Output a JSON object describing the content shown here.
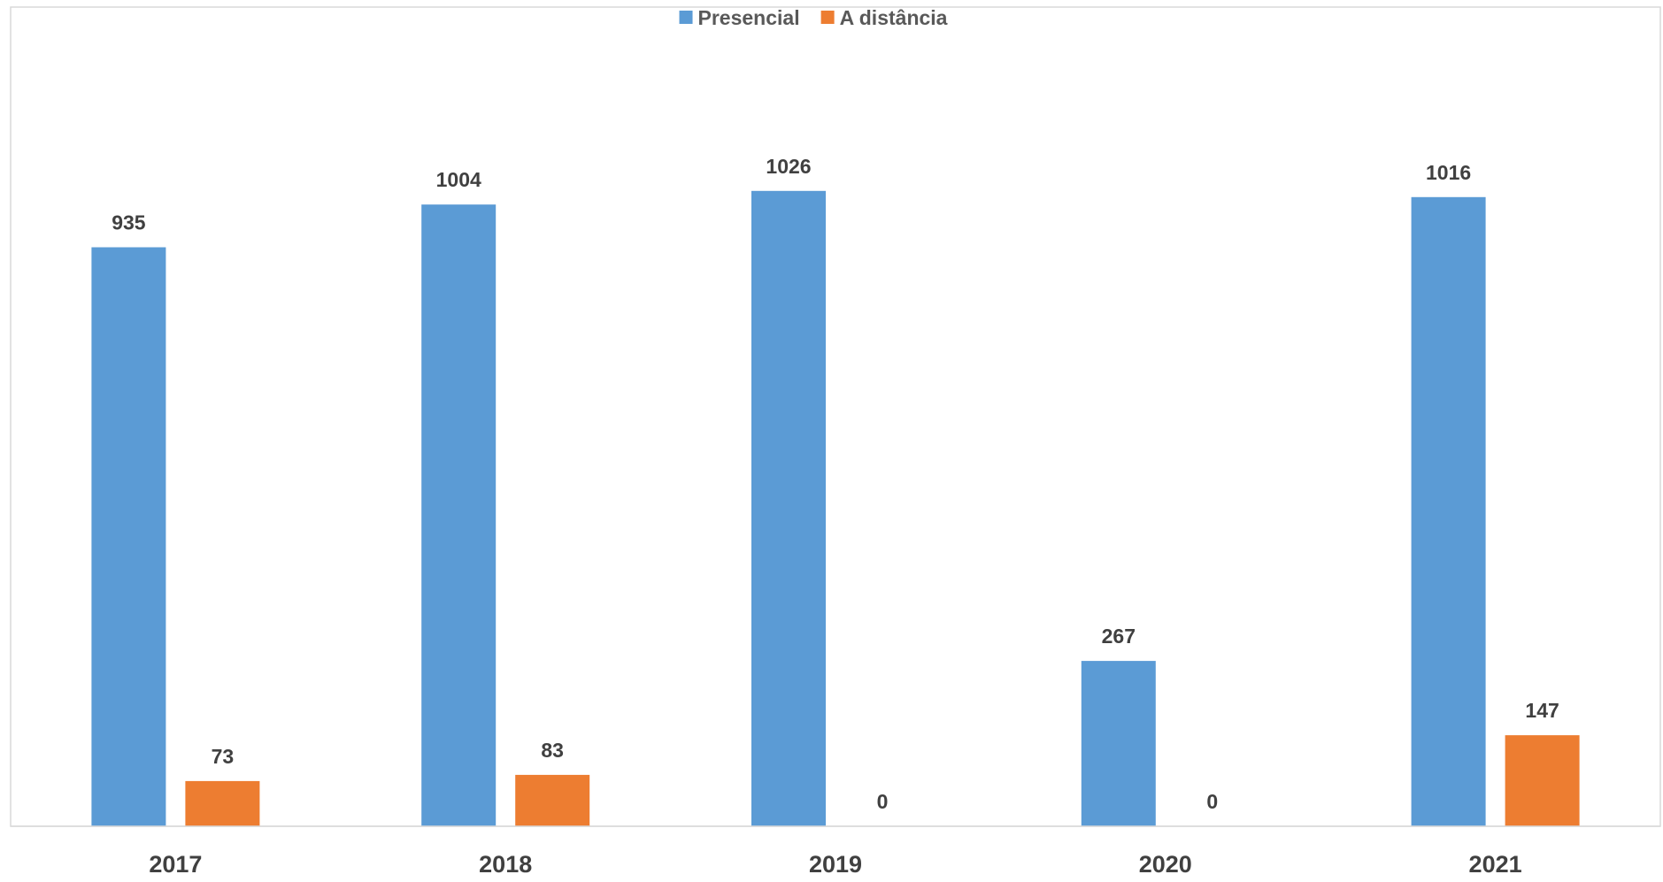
{
  "chart_data": {
    "type": "bar",
    "title": "",
    "xlabel": "",
    "ylabel": "",
    "categories": [
      "2017",
      "2018",
      "2019",
      "2020",
      "2021"
    ],
    "series": [
      {
        "name": "Presencial",
        "color": "#5B9BD5",
        "values": [
          935,
          1004,
          1026,
          267,
          1016
        ]
      },
      {
        "name": "A distância",
        "color": "#ED7D31",
        "values": [
          73,
          83,
          0,
          0,
          147
        ]
      }
    ],
    "ylim": [
      0,
      1150
    ],
    "grid": false,
    "legend": "top-center",
    "data_labels": true
  }
}
